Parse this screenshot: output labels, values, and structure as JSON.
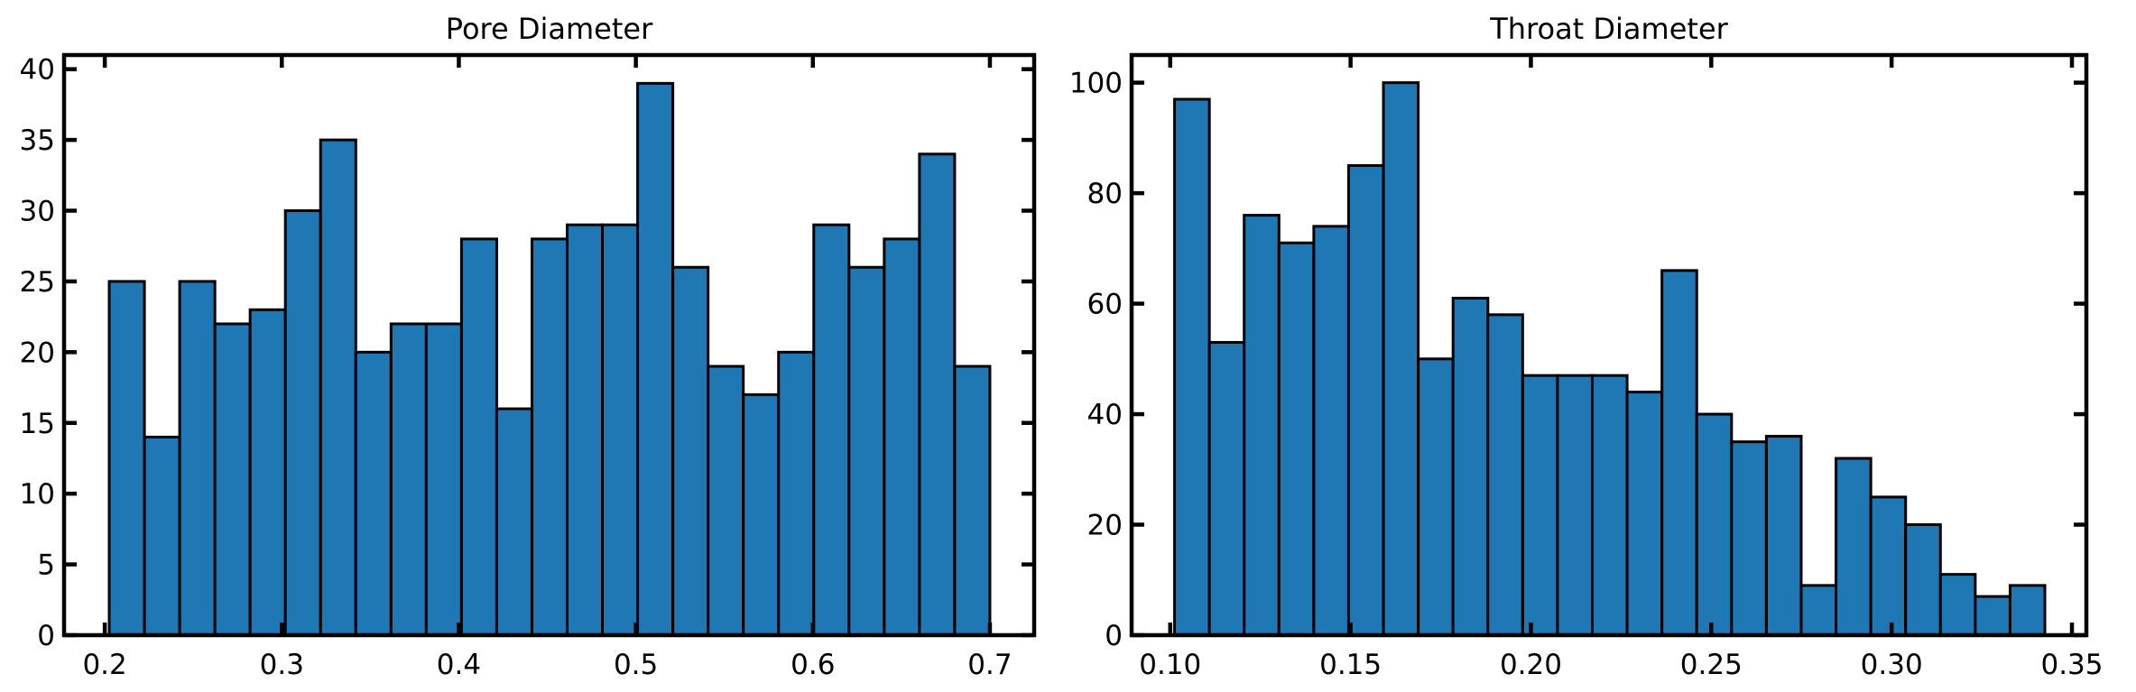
{
  "chart_data": [
    {
      "type": "bar",
      "title": "Pore Diameter",
      "xlabel": "",
      "ylabel": "",
      "color": "#1f77b4",
      "edge_color": "#000000",
      "bin_start": 0.2025,
      "bin_end": 0.7,
      "values": [
        25,
        14,
        25,
        22,
        23,
        30,
        35,
        20,
        22,
        22,
        28,
        16,
        28,
        29,
        29,
        39,
        26,
        19,
        17,
        20,
        29,
        26,
        28,
        34,
        19
      ],
      "xlim": [
        0.177,
        0.725
      ],
      "ylim": [
        0,
        41
      ],
      "xticks": [
        0.2,
        0.3,
        0.4,
        0.5,
        0.6,
        0.7
      ],
      "xtick_labels": [
        "0.2",
        "0.3",
        "0.4",
        "0.5",
        "0.6",
        "0.7"
      ],
      "yticks": [
        0,
        5,
        10,
        15,
        20,
        25,
        30,
        35,
        40
      ],
      "ytick_labels": [
        "0",
        "5",
        "10",
        "15",
        "20",
        "25",
        "30",
        "35",
        "40"
      ],
      "grid": false,
      "legend": false
    },
    {
      "type": "bar",
      "title": "Throat Diameter",
      "xlabel": "",
      "ylabel": "",
      "color": "#1f77b4",
      "edge_color": "#000000",
      "bin_start": 0.1012,
      "bin_end": 0.3425,
      "values": [
        97,
        53,
        76,
        71,
        74,
        85,
        100,
        50,
        61,
        58,
        47,
        47,
        47,
        44,
        66,
        40,
        35,
        36,
        9,
        32,
        25,
        20,
        11,
        7,
        9
      ],
      "xlim": [
        0.0893,
        0.354
      ],
      "ylim": [
        0,
        105
      ],
      "xticks": [
        0.1,
        0.15,
        0.2,
        0.25,
        0.3,
        0.35
      ],
      "xtick_labels": [
        "0.10",
        "0.15",
        "0.20",
        "0.25",
        "0.30",
        "0.35"
      ],
      "yticks": [
        0,
        20,
        40,
        60,
        80,
        100
      ],
      "ytick_labels": [
        "0",
        "20",
        "40",
        "60",
        "80",
        "100"
      ],
      "grid": false,
      "legend": false
    }
  ]
}
